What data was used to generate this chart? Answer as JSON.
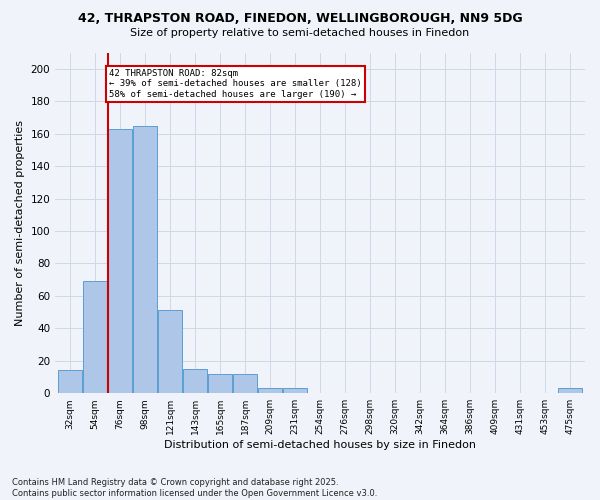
{
  "title_line1": "42, THRAPSTON ROAD, FINEDON, WELLINGBOROUGH, NN9 5DG",
  "title_line2": "Size of property relative to semi-detached houses in Finedon",
  "xlabel": "Distribution of semi-detached houses by size in Finedon",
  "ylabel": "Number of semi-detached properties",
  "bins": [
    "32sqm",
    "54sqm",
    "76sqm",
    "98sqm",
    "121sqm",
    "143sqm",
    "165sqm",
    "187sqm",
    "209sqm",
    "231sqm",
    "254sqm",
    "276sqm",
    "298sqm",
    "320sqm",
    "342sqm",
    "364sqm",
    "386sqm",
    "409sqm",
    "431sqm",
    "453sqm",
    "475sqm"
  ],
  "values": [
    14,
    69,
    163,
    165,
    51,
    15,
    12,
    12,
    3,
    3,
    0,
    0,
    0,
    0,
    0,
    0,
    0,
    0,
    0,
    0,
    3
  ],
  "bar_color": "#aec6e8",
  "bar_edge_color": "#5a9fd4",
  "property_line_x": 2,
  "annotation_text": "42 THRAPSTON ROAD: 82sqm\n← 39% of semi-detached houses are smaller (128)\n58% of semi-detached houses are larger (190) →",
  "annotation_box_color": "#ffffff",
  "annotation_box_edge_color": "#cc0000",
  "red_line_color": "#cc0000",
  "grid_color": "#d0d8e8",
  "background_color": "#f0f4fa",
  "footer_line1": "Contains HM Land Registry data © Crown copyright and database right 2025.",
  "footer_line2": "Contains public sector information licensed under the Open Government Licence v3.0.",
  "ylim": [
    0,
    210
  ],
  "yticks": [
    0,
    20,
    40,
    60,
    80,
    100,
    120,
    140,
    160,
    180,
    200
  ]
}
